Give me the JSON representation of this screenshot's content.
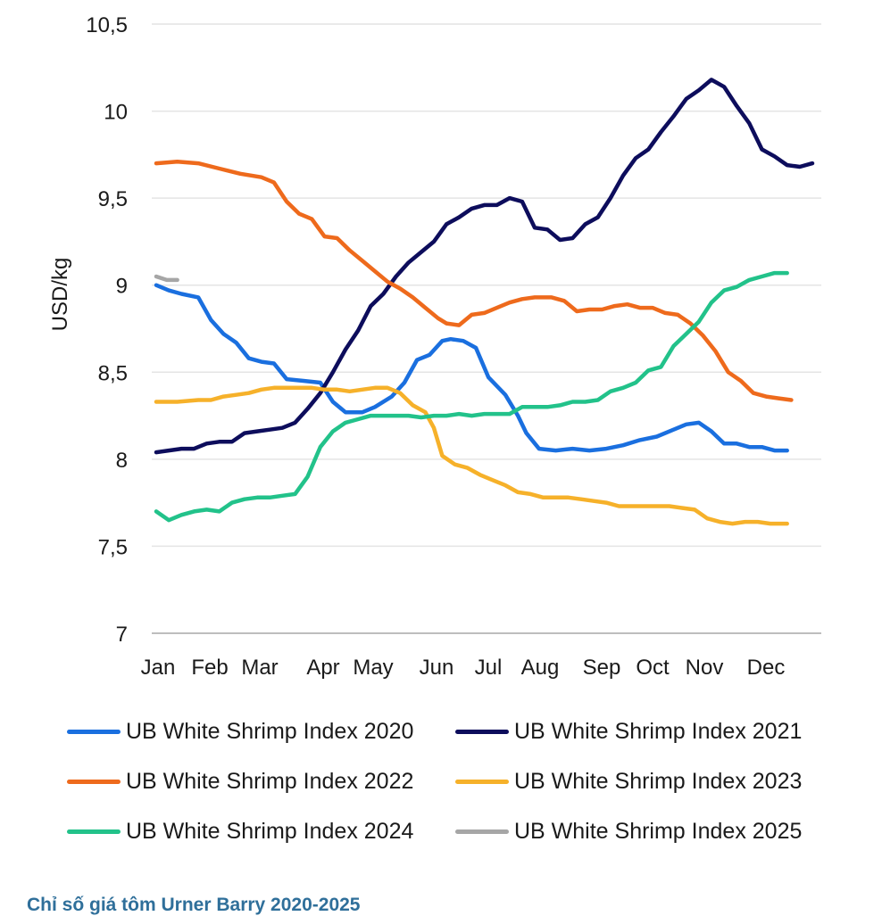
{
  "chart_data": {
    "type": "line",
    "title": "",
    "xlabel": "",
    "ylabel": "USD/kg",
    "ylim": [
      7,
      10.5
    ],
    "yticks": [
      "7",
      "7,5",
      "8",
      "8,5",
      "9",
      "9,5",
      "10",
      "10,5"
    ],
    "ytick_values": [
      7,
      7.5,
      8,
      8.5,
      9,
      9.5,
      10,
      10.5
    ],
    "months": [
      "Jan",
      "Feb",
      "Mar",
      "Apr",
      "May",
      "Jun",
      "Jul",
      "Aug",
      "Sep",
      "Oct",
      "Nov",
      "Dec"
    ],
    "month_positions": [
      0,
      1,
      2,
      3.1,
      4,
      5.2,
      6.2,
      7.1,
      8.4,
      9.4,
      10.4,
      11.7
    ],
    "grid": true,
    "legend_position": "bottom",
    "series": [
      {
        "name": "UB White Shrimp Index 2020",
        "color": "#1a6fdf",
        "points": [
          [
            0,
            9.0
          ],
          [
            0.3,
            8.97
          ],
          [
            0.6,
            8.95
          ],
          [
            1.0,
            8.93
          ],
          [
            1.3,
            8.8
          ],
          [
            1.6,
            8.72
          ],
          [
            1.9,
            8.67
          ],
          [
            2.2,
            8.58
          ],
          [
            2.5,
            8.56
          ],
          [
            2.8,
            8.55
          ],
          [
            3.1,
            8.46
          ],
          [
            3.5,
            8.45
          ],
          [
            3.9,
            8.44
          ],
          [
            4.2,
            8.33
          ],
          [
            4.5,
            8.27
          ],
          [
            4.9,
            8.27
          ],
          [
            5.2,
            8.3
          ],
          [
            5.6,
            8.36
          ],
          [
            5.9,
            8.44
          ],
          [
            6.2,
            8.57
          ],
          [
            6.5,
            8.6
          ],
          [
            6.8,
            8.68
          ],
          [
            7.0,
            8.69
          ],
          [
            7.3,
            8.68
          ],
          [
            7.6,
            8.64
          ],
          [
            7.9,
            8.47
          ],
          [
            8.3,
            8.37
          ],
          [
            8.6,
            8.25
          ],
          [
            8.8,
            8.15
          ],
          [
            9.1,
            8.06
          ],
          [
            9.5,
            8.05
          ],
          [
            9.9,
            8.06
          ],
          [
            10.3,
            8.05
          ],
          [
            10.7,
            8.06
          ],
          [
            11.1,
            8.08
          ],
          [
            11.5,
            8.11
          ],
          [
            11.9,
            8.13
          ],
          [
            12.3,
            8.17
          ],
          [
            12.6,
            8.2
          ],
          [
            12.9,
            8.21
          ],
          [
            13.2,
            8.16
          ],
          [
            13.5,
            8.09
          ],
          [
            13.8,
            8.09
          ],
          [
            14.1,
            8.07
          ],
          [
            14.4,
            8.07
          ],
          [
            14.7,
            8.05
          ],
          [
            15.0,
            8.05
          ]
        ]
      },
      {
        "name": "UB White Shrimp Index 2021",
        "color": "#0d0d5c",
        "points": [
          [
            0,
            8.04
          ],
          [
            0.3,
            8.05
          ],
          [
            0.6,
            8.06
          ],
          [
            0.9,
            8.06
          ],
          [
            1.2,
            8.09
          ],
          [
            1.5,
            8.1
          ],
          [
            1.8,
            8.1
          ],
          [
            2.1,
            8.15
          ],
          [
            2.4,
            8.16
          ],
          [
            2.7,
            8.17
          ],
          [
            3.0,
            8.18
          ],
          [
            3.3,
            8.21
          ],
          [
            3.6,
            8.29
          ],
          [
            3.9,
            8.38
          ],
          [
            4.2,
            8.5
          ],
          [
            4.5,
            8.63
          ],
          [
            4.8,
            8.74
          ],
          [
            5.1,
            8.88
          ],
          [
            5.4,
            8.95
          ],
          [
            5.7,
            9.05
          ],
          [
            6.0,
            9.13
          ],
          [
            6.3,
            9.19
          ],
          [
            6.6,
            9.25
          ],
          [
            6.9,
            9.35
          ],
          [
            7.2,
            9.39
          ],
          [
            7.5,
            9.44
          ],
          [
            7.8,
            9.46
          ],
          [
            8.1,
            9.46
          ],
          [
            8.4,
            9.5
          ],
          [
            8.7,
            9.48
          ],
          [
            9.0,
            9.33
          ],
          [
            9.3,
            9.32
          ],
          [
            9.6,
            9.26
          ],
          [
            9.9,
            9.27
          ],
          [
            10.2,
            9.35
          ],
          [
            10.5,
            9.39
          ],
          [
            10.8,
            9.5
          ],
          [
            11.1,
            9.63
          ],
          [
            11.4,
            9.73
          ],
          [
            11.7,
            9.78
          ],
          [
            12.0,
            9.88
          ],
          [
            12.3,
            9.97
          ],
          [
            12.6,
            10.07
          ],
          [
            12.9,
            10.12
          ],
          [
            13.2,
            10.18
          ],
          [
            13.5,
            10.14
          ],
          [
            13.8,
            10.03
          ],
          [
            14.1,
            9.93
          ],
          [
            14.4,
            9.78
          ],
          [
            14.7,
            9.74
          ],
          [
            15.0,
            9.69
          ],
          [
            15.3,
            9.68
          ],
          [
            15.6,
            9.7
          ]
        ]
      },
      {
        "name": "UB White Shrimp Index 2022",
        "color": "#ee6a1c",
        "points": [
          [
            0,
            9.7
          ],
          [
            0.5,
            9.71
          ],
          [
            1.0,
            9.7
          ],
          [
            1.5,
            9.67
          ],
          [
            2.0,
            9.64
          ],
          [
            2.5,
            9.62
          ],
          [
            2.8,
            9.59
          ],
          [
            3.1,
            9.48
          ],
          [
            3.4,
            9.41
          ],
          [
            3.7,
            9.38
          ],
          [
            4.0,
            9.28
          ],
          [
            4.3,
            9.27
          ],
          [
            4.6,
            9.2
          ],
          [
            4.9,
            9.14
          ],
          [
            5.2,
            9.08
          ],
          [
            5.5,
            9.02
          ],
          [
            5.8,
            8.98
          ],
          [
            6.1,
            8.93
          ],
          [
            6.4,
            8.87
          ],
          [
            6.7,
            8.81
          ],
          [
            6.9,
            8.78
          ],
          [
            7.2,
            8.77
          ],
          [
            7.5,
            8.83
          ],
          [
            7.8,
            8.84
          ],
          [
            8.1,
            8.87
          ],
          [
            8.4,
            8.9
          ],
          [
            8.7,
            8.92
          ],
          [
            9.0,
            8.93
          ],
          [
            9.4,
            8.93
          ],
          [
            9.7,
            8.91
          ],
          [
            10.0,
            8.85
          ],
          [
            10.3,
            8.86
          ],
          [
            10.6,
            8.86
          ],
          [
            10.9,
            8.88
          ],
          [
            11.2,
            8.89
          ],
          [
            11.5,
            8.87
          ],
          [
            11.8,
            8.87
          ],
          [
            12.1,
            8.84
          ],
          [
            12.4,
            8.83
          ],
          [
            12.7,
            8.78
          ],
          [
            13.0,
            8.71
          ],
          [
            13.3,
            8.62
          ],
          [
            13.6,
            8.5
          ],
          [
            13.9,
            8.45
          ],
          [
            14.2,
            8.38
          ],
          [
            14.5,
            8.36
          ],
          [
            14.8,
            8.35
          ],
          [
            15.1,
            8.34
          ]
        ]
      },
      {
        "name": "UB White Shrimp Index 2023",
        "color": "#f6b12a",
        "points": [
          [
            0,
            8.33
          ],
          [
            0.5,
            8.33
          ],
          [
            1.0,
            8.34
          ],
          [
            1.3,
            8.34
          ],
          [
            1.6,
            8.36
          ],
          [
            1.9,
            8.37
          ],
          [
            2.2,
            8.38
          ],
          [
            2.5,
            8.4
          ],
          [
            2.8,
            8.41
          ],
          [
            3.1,
            8.41
          ],
          [
            3.4,
            8.41
          ],
          [
            3.7,
            8.41
          ],
          [
            4.0,
            8.4
          ],
          [
            4.3,
            8.4
          ],
          [
            4.6,
            8.39
          ],
          [
            4.9,
            8.4
          ],
          [
            5.2,
            8.41
          ],
          [
            5.5,
            8.41
          ],
          [
            5.8,
            8.38
          ],
          [
            6.1,
            8.31
          ],
          [
            6.4,
            8.27
          ],
          [
            6.6,
            8.18
          ],
          [
            6.8,
            8.02
          ],
          [
            7.1,
            7.97
          ],
          [
            7.4,
            7.95
          ],
          [
            7.7,
            7.91
          ],
          [
            8.0,
            7.88
          ],
          [
            8.3,
            7.85
          ],
          [
            8.6,
            7.81
          ],
          [
            8.9,
            7.8
          ],
          [
            9.2,
            7.78
          ],
          [
            9.5,
            7.78
          ],
          [
            9.8,
            7.78
          ],
          [
            10.1,
            7.77
          ],
          [
            10.4,
            7.76
          ],
          [
            10.7,
            7.75
          ],
          [
            11.0,
            7.73
          ],
          [
            11.3,
            7.73
          ],
          [
            11.6,
            7.73
          ],
          [
            11.9,
            7.73
          ],
          [
            12.2,
            7.73
          ],
          [
            12.5,
            7.72
          ],
          [
            12.8,
            7.71
          ],
          [
            13.1,
            7.66
          ],
          [
            13.4,
            7.64
          ],
          [
            13.7,
            7.63
          ],
          [
            14.0,
            7.64
          ],
          [
            14.3,
            7.64
          ],
          [
            14.6,
            7.63
          ],
          [
            15.0,
            7.63
          ]
        ]
      },
      {
        "name": "UB White Shrimp Index 2024",
        "color": "#22c28a",
        "points": [
          [
            0,
            7.7
          ],
          [
            0.3,
            7.65
          ],
          [
            0.6,
            7.68
          ],
          [
            0.9,
            7.7
          ],
          [
            1.2,
            7.71
          ],
          [
            1.5,
            7.7
          ],
          [
            1.8,
            7.75
          ],
          [
            2.1,
            7.77
          ],
          [
            2.4,
            7.78
          ],
          [
            2.7,
            7.78
          ],
          [
            3.0,
            7.79
          ],
          [
            3.3,
            7.8
          ],
          [
            3.6,
            7.9
          ],
          [
            3.9,
            8.07
          ],
          [
            4.2,
            8.16
          ],
          [
            4.5,
            8.21
          ],
          [
            4.8,
            8.23
          ],
          [
            5.1,
            8.25
          ],
          [
            5.4,
            8.25
          ],
          [
            5.7,
            8.25
          ],
          [
            6.0,
            8.25
          ],
          [
            6.3,
            8.24
          ],
          [
            6.6,
            8.25
          ],
          [
            6.9,
            8.25
          ],
          [
            7.2,
            8.26
          ],
          [
            7.5,
            8.25
          ],
          [
            7.8,
            8.26
          ],
          [
            8.1,
            8.26
          ],
          [
            8.4,
            8.26
          ],
          [
            8.7,
            8.3
          ],
          [
            9.0,
            8.3
          ],
          [
            9.3,
            8.3
          ],
          [
            9.6,
            8.31
          ],
          [
            9.9,
            8.33
          ],
          [
            10.2,
            8.33
          ],
          [
            10.5,
            8.34
          ],
          [
            10.8,
            8.39
          ],
          [
            11.1,
            8.41
          ],
          [
            11.4,
            8.44
          ],
          [
            11.7,
            8.51
          ],
          [
            12.0,
            8.53
          ],
          [
            12.3,
            8.65
          ],
          [
            12.6,
            8.72
          ],
          [
            12.9,
            8.79
          ],
          [
            13.2,
            8.9
          ],
          [
            13.5,
            8.97
          ],
          [
            13.8,
            8.99
          ],
          [
            14.1,
            9.03
          ],
          [
            14.4,
            9.05
          ],
          [
            14.7,
            9.07
          ],
          [
            15.0,
            9.07
          ]
        ]
      },
      {
        "name": "UB White Shrimp Index 2025",
        "color": "#a6a6a6",
        "points": [
          [
            0,
            9.05
          ],
          [
            0.25,
            9.03
          ],
          [
            0.5,
            9.03
          ]
        ]
      }
    ]
  },
  "caption": "Chỉ số giá tôm Urner Barry 2020-2025"
}
